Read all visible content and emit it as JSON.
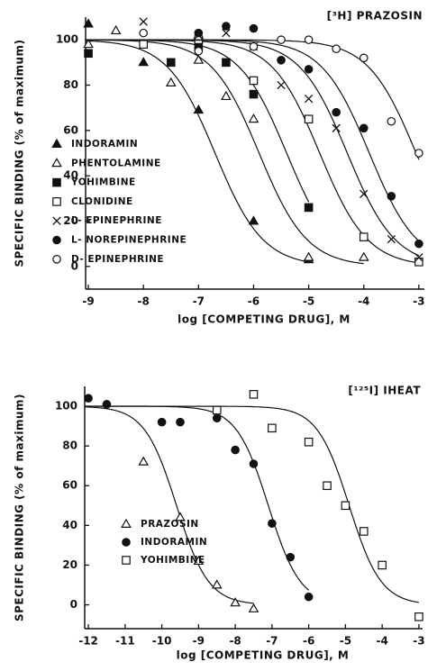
{
  "chart_data": [
    {
      "type": "scatter",
      "title": "[³H] PRAZOSIN",
      "x_label": "log [COMPETING DRUG], M",
      "y_label": "SPECIFIC  BINDING  (% of maximum)",
      "xlim": [
        -9.05,
        -2.9
      ],
      "xticks": [
        -9,
        -8,
        -7,
        -6,
        -5,
        -4,
        -3
      ],
      "ylim": [
        -10,
        110
      ],
      "yticks": [
        0,
        20,
        40,
        60,
        80,
        100
      ],
      "hill_slope": 1,
      "series": [
        {
          "name": "INDORAMIN",
          "marker": "filled-triangle",
          "color": "#111",
          "midpoint": -6.7,
          "x": [
            -9,
            -8,
            -7,
            -7,
            -6,
            -5
          ],
          "values": [
            107,
            90,
            102,
            69,
            20,
            3
          ]
        },
        {
          "name": "PHENTOLAMINE",
          "marker": "open-triangle",
          "color": "#111",
          "midpoint": -5.9,
          "x": [
            -9,
            -8.5,
            -7.5,
            -7,
            -6.5,
            -6,
            -5,
            -4
          ],
          "values": [
            98,
            104,
            81,
            91,
            75,
            65,
            4,
            4
          ]
        },
        {
          "name": "YOHIMBINE",
          "marker": "filled-square",
          "color": "#111",
          "midpoint": -5.4,
          "x": [
            -9,
            -7.5,
            -7,
            -6.5,
            -6,
            -5
          ],
          "values": [
            94,
            90,
            97,
            90,
            76,
            26
          ]
        },
        {
          "name": "CLONIDINE",
          "marker": "open-square",
          "color": "#111",
          "midpoint": -4.8,
          "x": [
            -8,
            -7,
            -6,
            -5,
            -4,
            -3
          ],
          "values": [
            98,
            100,
            82,
            65,
            13,
            2
          ]
        },
        {
          "name": "L- EPINEPHRINE",
          "marker": "cross",
          "color": "#111",
          "midpoint": -4.3,
          "x": [
            -8,
            -7,
            -6.5,
            -6,
            -5.5,
            -5,
            -4.5,
            -4,
            -3.5,
            -3
          ],
          "values": [
            108,
            102,
            103,
            97,
            80,
            74,
            61,
            32,
            12,
            4
          ]
        },
        {
          "name": "L- NOREPINEPHRINE",
          "marker": "filled-circle",
          "color": "#111",
          "midpoint": -3.9,
          "x": [
            -7,
            -6.5,
            -6,
            -5.5,
            -5,
            -4.5,
            -4,
            -3.5,
            -3
          ],
          "values": [
            103,
            106,
            105,
            91,
            87,
            68,
            61,
            31,
            10
          ]
        },
        {
          "name": "D- EPINEPHRINE",
          "marker": "open-circle",
          "color": "#111",
          "midpoint": -3.05,
          "x": [
            -8,
            -7,
            -6,
            -5.5,
            -5,
            -4.5,
            -4,
            -3.5,
            -3
          ],
          "values": [
            103,
            95,
            97,
            100,
            100,
            96,
            92,
            64,
            50
          ]
        }
      ]
    },
    {
      "type": "scatter",
      "title": "[¹²⁵I] IHEAT",
      "x_label": "log [COMPETING DRUG], M",
      "y_label": "SPECIFIC  BINDING  (% of maximum)",
      "xlim": [
        -12.1,
        -2.9
      ],
      "xticks": [
        -12,
        -11,
        -10,
        -9,
        -8,
        -7,
        -6,
        -5,
        -4,
        -3
      ],
      "ylim": [
        -12,
        110
      ],
      "yticks": [
        0,
        20,
        40,
        60,
        80,
        100
      ],
      "hill_slope": 1,
      "series": [
        {
          "name": "PRAZOSIN",
          "marker": "open-triangle",
          "color": "#111",
          "midpoint": -9.6,
          "x": [
            -10.5,
            -9.5,
            -9,
            -8.5,
            -8,
            -7.5
          ],
          "values": [
            72,
            44,
            22,
            10,
            1,
            -2
          ]
        },
        {
          "name": "INDORAMIN",
          "marker": "filled-circle",
          "color": "#111",
          "midpoint": -7.1,
          "x": [
            -12,
            -11.5,
            -10,
            -9.5,
            -8.5,
            -8,
            -7.5,
            -7,
            -6.5,
            -6
          ],
          "values": [
            104,
            101,
            92,
            92,
            94,
            78,
            71,
            41,
            24,
            4
          ]
        },
        {
          "name": "YOHIMBINE",
          "marker": "open-square",
          "color": "#111",
          "midpoint": -4.9,
          "x": [
            -8.5,
            -7.5,
            -7,
            -6,
            -5.5,
            -5,
            -4.5,
            -4,
            -3
          ],
          "values": [
            98,
            106,
            89,
            82,
            60,
            50,
            37,
            20,
            -6
          ]
        }
      ]
    }
  ]
}
